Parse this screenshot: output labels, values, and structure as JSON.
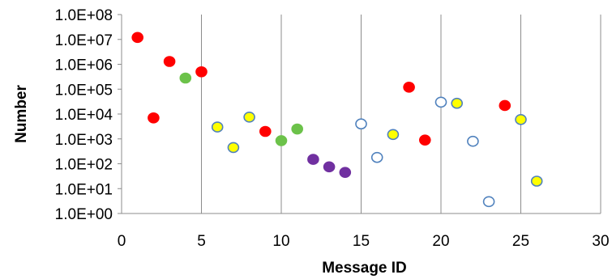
{
  "chart_data": {
    "type": "scatter",
    "title": "",
    "xlabel": "Message ID",
    "ylabel": "Number",
    "xlim": [
      0,
      30
    ],
    "ylim": [
      1,
      100000000
    ],
    "yscale": "log",
    "grid": "vertical",
    "legend": "none",
    "x_ticks": [
      "0",
      "5",
      "10",
      "15",
      "20",
      "25",
      "30"
    ],
    "y_ticks": [
      "1.0E+00",
      "1.0E+01",
      "1.0E+02",
      "1.0E+03",
      "1.0E+04",
      "1.0E+05",
      "1.0E+06",
      "1.0E+07",
      "1.0E+08"
    ],
    "point_styles": {
      "red": {
        "fill": "#ff0000",
        "stroke": "#ff0000"
      },
      "green": {
        "fill": "#6cc24a",
        "stroke": "#6cc24a"
      },
      "yellow": {
        "fill": "#ffff00",
        "stroke": "#4f81bd"
      },
      "purple": {
        "fill": "#7030a0",
        "stroke": "#7030a0"
      },
      "hollow": {
        "fill": "#ffffff",
        "stroke": "#4f81bd"
      }
    },
    "points": [
      {
        "x": 1,
        "y": 12000000,
        "style": "red"
      },
      {
        "x": 2,
        "y": 7000,
        "style": "red"
      },
      {
        "x": 3,
        "y": 1300000,
        "style": "red"
      },
      {
        "x": 4,
        "y": 280000,
        "style": "green"
      },
      {
        "x": 5,
        "y": 500000,
        "style": "red"
      },
      {
        "x": 6,
        "y": 3000,
        "style": "yellow"
      },
      {
        "x": 7,
        "y": 450,
        "style": "yellow"
      },
      {
        "x": 8,
        "y": 7500,
        "style": "yellow"
      },
      {
        "x": 9,
        "y": 2000,
        "style": "red"
      },
      {
        "x": 10,
        "y": 850,
        "style": "green"
      },
      {
        "x": 11,
        "y": 2500,
        "style": "green"
      },
      {
        "x": 12,
        "y": 150,
        "style": "purple"
      },
      {
        "x": 13,
        "y": 75,
        "style": "purple"
      },
      {
        "x": 14,
        "y": 45,
        "style": "purple"
      },
      {
        "x": 15,
        "y": 4000,
        "style": "hollow"
      },
      {
        "x": 16,
        "y": 180,
        "style": "hollow"
      },
      {
        "x": 17,
        "y": 1500,
        "style": "yellow"
      },
      {
        "x": 18,
        "y": 120000,
        "style": "red"
      },
      {
        "x": 19,
        "y": 900,
        "style": "red"
      },
      {
        "x": 20,
        "y": 30000,
        "style": "hollow"
      },
      {
        "x": 21,
        "y": 27000,
        "style": "yellow"
      },
      {
        "x": 22,
        "y": 800,
        "style": "hollow"
      },
      {
        "x": 23,
        "y": 3,
        "style": "hollow"
      },
      {
        "x": 24,
        "y": 22000,
        "style": "red"
      },
      {
        "x": 25,
        "y": 6000,
        "style": "yellow"
      },
      {
        "x": 26,
        "y": 20,
        "style": "yellow"
      }
    ]
  }
}
